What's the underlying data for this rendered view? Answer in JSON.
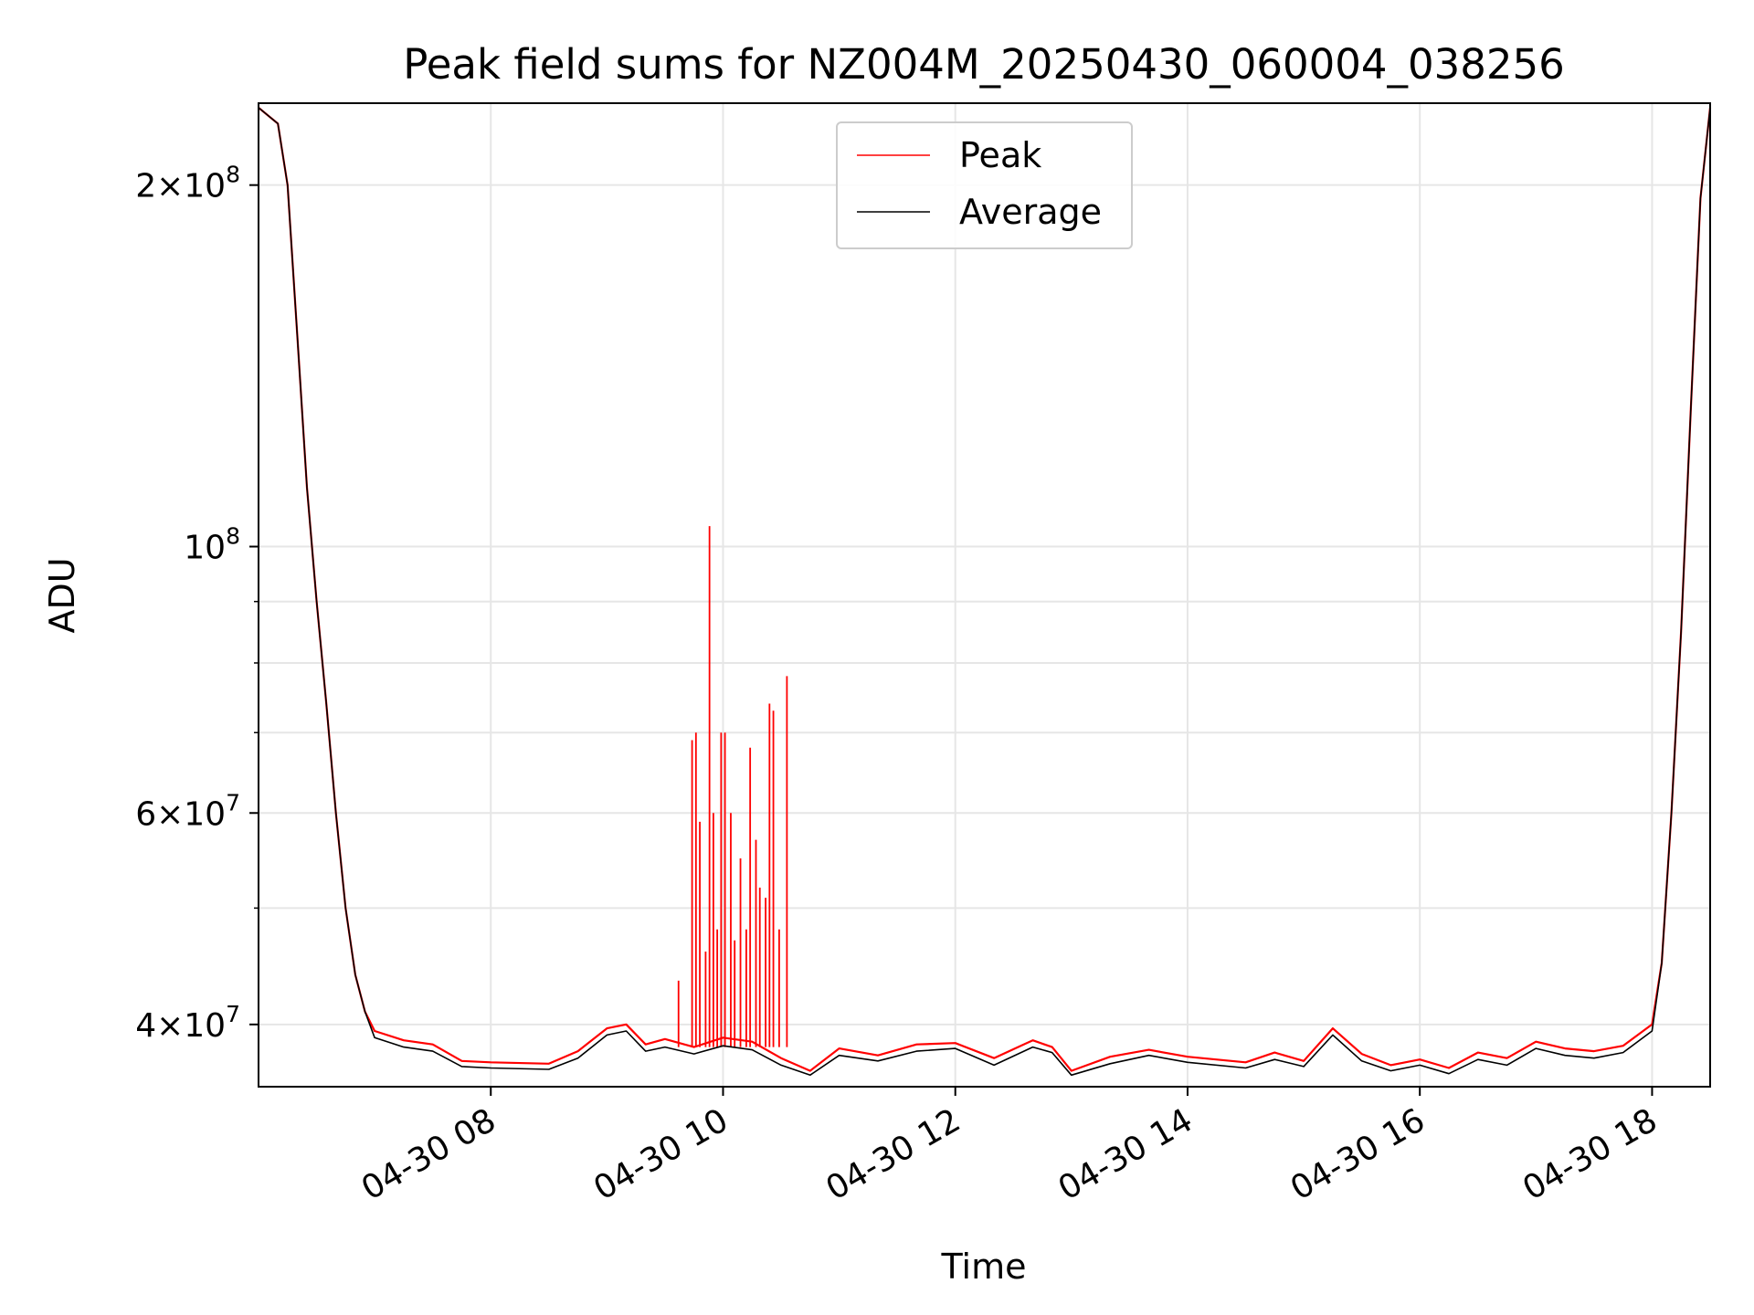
{
  "chart_data": {
    "type": "line",
    "title": "Peak field sums for NZ004M_20250430_060004_038256",
    "xlabel": "Time",
    "ylabel": "ADU",
    "yscale": "log",
    "ylim": [
      35500000,
      234000000
    ],
    "xlim": [
      "04-30 06:00",
      "04-30 18:30"
    ],
    "grid": true,
    "legend_position": "top-center",
    "x_tick_labels": [
      "04-30 08",
      "04-30 10",
      "04-30 12",
      "04-30 14",
      "04-30 16",
      "04-30 18"
    ],
    "x_ticks": [
      "04-30 08:00",
      "04-30 10:00",
      "04-30 12:00",
      "04-30 14:00",
      "04-30 16:00",
      "04-30 18:00"
    ],
    "y_major_ticks": [
      {
        "value": 40000000,
        "mantissa": "4",
        "exponent": "7"
      },
      {
        "value": 60000000,
        "mantissa": "6",
        "exponent": "7"
      },
      {
        "value": 100000000,
        "mantissa": "",
        "exponent": "8"
      },
      {
        "value": 200000000,
        "mantissa": "2",
        "exponent": "8"
      }
    ],
    "y_minor_ticks": [
      50000000,
      70000000,
      80000000,
      90000000
    ],
    "series": [
      {
        "name": "Peak",
        "color": "#ff0000",
        "points": [
          [
            "04-30 06:00",
            232000000
          ],
          [
            "04-30 06:10",
            225000000
          ],
          [
            "04-30 06:15",
            200000000
          ],
          [
            "04-30 06:20",
            150000000
          ],
          [
            "04-30 06:25",
            112000000
          ],
          [
            "04-30 06:30",
            90000000
          ],
          [
            "04-30 06:35",
            74000000
          ],
          [
            "04-30 06:40",
            60000000
          ],
          [
            "04-30 06:45",
            50000000
          ],
          [
            "04-30 06:50",
            44000000
          ],
          [
            "04-30 06:55",
            41000000
          ],
          [
            "04-30 07:00",
            39500000
          ],
          [
            "04-30 07:15",
            38800000
          ],
          [
            "04-30 07:30",
            38500000
          ],
          [
            "04-30 07:45",
            37300000
          ],
          [
            "04-30 08:00",
            37200000
          ],
          [
            "04-30 08:30",
            37100000
          ],
          [
            "04-30 08:45",
            38000000
          ],
          [
            "04-30 09:00",
            39700000
          ],
          [
            "04-30 09:10",
            40000000
          ],
          [
            "04-30 09:20",
            38500000
          ],
          [
            "04-30 09:30",
            38900000
          ],
          [
            "04-30 09:45",
            38300000
          ],
          [
            "04-30 10:00",
            39000000
          ],
          [
            "04-30 10:15",
            38700000
          ],
          [
            "04-30 10:30",
            37500000
          ],
          [
            "04-30 10:45",
            36600000
          ],
          [
            "04-30 11:00",
            38200000
          ],
          [
            "04-30 11:20",
            37700000
          ],
          [
            "04-30 11:40",
            38500000
          ],
          [
            "04-30 12:00",
            38600000
          ],
          [
            "04-30 12:20",
            37500000
          ],
          [
            "04-30 12:40",
            38800000
          ],
          [
            "04-30 12:50",
            38300000
          ],
          [
            "04-30 13:00",
            36600000
          ],
          [
            "04-30 13:20",
            37600000
          ],
          [
            "04-30 13:40",
            38100000
          ],
          [
            "04-30 14:00",
            37600000
          ],
          [
            "04-30 14:30",
            37200000
          ],
          [
            "04-30 14:45",
            37900000
          ],
          [
            "04-30 15:00",
            37300000
          ],
          [
            "04-30 15:15",
            39700000
          ],
          [
            "04-30 15:30",
            37800000
          ],
          [
            "04-30 15:45",
            37000000
          ],
          [
            "04-30 16:00",
            37400000
          ],
          [
            "04-30 16:15",
            36800000
          ],
          [
            "04-30 16:30",
            37900000
          ],
          [
            "04-30 16:45",
            37500000
          ],
          [
            "04-30 17:00",
            38700000
          ],
          [
            "04-30 17:15",
            38200000
          ],
          [
            "04-30 17:30",
            38000000
          ],
          [
            "04-30 17:45",
            38400000
          ],
          [
            "04-30 18:00",
            40000000
          ],
          [
            "04-30 18:05",
            45000000
          ],
          [
            "04-30 18:10",
            60000000
          ],
          [
            "04-30 18:15",
            85000000
          ],
          [
            "04-30 18:20",
            130000000
          ],
          [
            "04-30 18:25",
            195000000
          ],
          [
            "04-30 18:30",
            232000000
          ]
        ],
        "spikes": [
          [
            "04-30 09:37",
            43500000
          ],
          [
            "04-30 09:44",
            69000000
          ],
          [
            "04-30 09:46",
            70000000
          ],
          [
            "04-30 09:48",
            59000000
          ],
          [
            "04-30 09:51",
            46000000
          ],
          [
            "04-30 09:53",
            104000000
          ],
          [
            "04-30 09:55",
            60000000
          ],
          [
            "04-30 09:57",
            48000000
          ],
          [
            "04-30 09:59",
            70000000
          ],
          [
            "04-30 10:01",
            70000000
          ],
          [
            "04-30 10:04",
            60000000
          ],
          [
            "04-30 10:06",
            47000000
          ],
          [
            "04-30 10:09",
            55000000
          ],
          [
            "04-30 10:12",
            48000000
          ],
          [
            "04-30 10:14",
            68000000
          ],
          [
            "04-30 10:17",
            57000000
          ],
          [
            "04-30 10:19",
            52000000
          ],
          [
            "04-30 10:22",
            51000000
          ],
          [
            "04-30 10:24",
            74000000
          ],
          [
            "04-30 10:26",
            73000000
          ],
          [
            "04-30 10:29",
            48000000
          ],
          [
            "04-30 10:33",
            78000000
          ]
        ]
      },
      {
        "name": "Average",
        "color": "#000000",
        "points": [
          [
            "04-30 06:00",
            232000000
          ],
          [
            "04-30 06:10",
            225000000
          ],
          [
            "04-30 06:15",
            200000000
          ],
          [
            "04-30 06:20",
            150000000
          ],
          [
            "04-30 06:25",
            112000000
          ],
          [
            "04-30 06:30",
            90000000
          ],
          [
            "04-30 06:35",
            74000000
          ],
          [
            "04-30 06:40",
            60000000
          ],
          [
            "04-30 06:45",
            50000000
          ],
          [
            "04-30 06:50",
            44000000
          ],
          [
            "04-30 06:55",
            41000000
          ],
          [
            "04-30 07:00",
            39000000
          ],
          [
            "04-30 07:15",
            38300000
          ],
          [
            "04-30 07:30",
            38000000
          ],
          [
            "04-30 07:45",
            36900000
          ],
          [
            "04-30 08:00",
            36800000
          ],
          [
            "04-30 08:30",
            36700000
          ],
          [
            "04-30 08:45",
            37500000
          ],
          [
            "04-30 09:00",
            39200000
          ],
          [
            "04-30 09:10",
            39500000
          ],
          [
            "04-30 09:20",
            38000000
          ],
          [
            "04-30 09:30",
            38300000
          ],
          [
            "04-30 09:45",
            37800000
          ],
          [
            "04-30 10:00",
            38400000
          ],
          [
            "04-30 10:15",
            38100000
          ],
          [
            "04-30 10:30",
            37000000
          ],
          [
            "04-30 10:45",
            36300000
          ],
          [
            "04-30 11:00",
            37700000
          ],
          [
            "04-30 11:20",
            37300000
          ],
          [
            "04-30 11:40",
            38000000
          ],
          [
            "04-30 12:00",
            38200000
          ],
          [
            "04-30 12:20",
            37000000
          ],
          [
            "04-30 12:40",
            38300000
          ],
          [
            "04-30 12:50",
            37900000
          ],
          [
            "04-30 13:00",
            36300000
          ],
          [
            "04-30 13:20",
            37100000
          ],
          [
            "04-30 13:40",
            37700000
          ],
          [
            "04-30 14:00",
            37200000
          ],
          [
            "04-30 14:30",
            36800000
          ],
          [
            "04-30 14:45",
            37400000
          ],
          [
            "04-30 15:00",
            36900000
          ],
          [
            "04-30 15:15",
            39200000
          ],
          [
            "04-30 15:30",
            37300000
          ],
          [
            "04-30 15:45",
            36600000
          ],
          [
            "04-30 16:00",
            37000000
          ],
          [
            "04-30 16:15",
            36400000
          ],
          [
            "04-30 16:30",
            37400000
          ],
          [
            "04-30 16:45",
            37000000
          ],
          [
            "04-30 17:00",
            38200000
          ],
          [
            "04-30 17:15",
            37700000
          ],
          [
            "04-30 17:30",
            37500000
          ],
          [
            "04-30 17:45",
            37900000
          ],
          [
            "04-30 18:00",
            39500000
          ],
          [
            "04-30 18:05",
            45000000
          ],
          [
            "04-30 18:10",
            60000000
          ],
          [
            "04-30 18:15",
            85000000
          ],
          [
            "04-30 18:20",
            130000000
          ],
          [
            "04-30 18:25",
            195000000
          ],
          [
            "04-30 18:30",
            232000000
          ]
        ]
      }
    ]
  }
}
